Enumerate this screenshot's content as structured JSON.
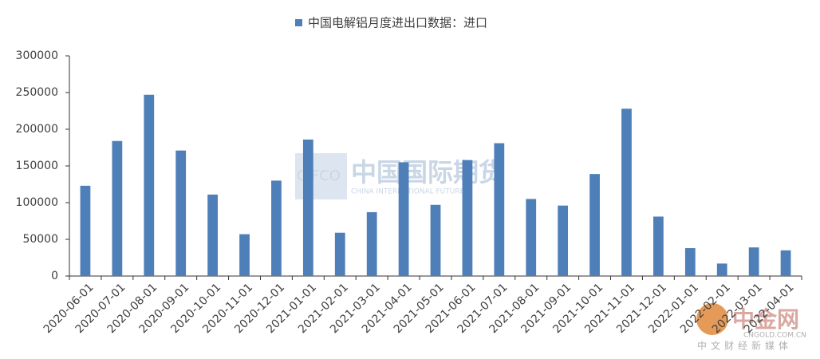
{
  "chart_data": {
    "type": "bar",
    "categories": [
      "2020-06-01",
      "2020-07-01",
      "2020-08-01",
      "2020-09-01",
      "2020-10-01",
      "2020-11-01",
      "2020-12-01",
      "2021-01-01",
      "2021-02-01",
      "2021-03-01",
      "2021-04-01",
      "2021-05-01",
      "2021-06-01",
      "2021-07-01",
      "2021-08-01",
      "2021-09-01",
      "2021-10-01",
      "2021-11-01",
      "2021-12-01",
      "2022-01-01",
      "2022-02-01",
      "2022-03-01",
      "2022-04-01"
    ],
    "series": [
      {
        "name": "中国电解铝月度进出口数据：进口",
        "color": "#4f7fb8",
        "values": [
          123000,
          184000,
          247000,
          171000,
          111000,
          57000,
          130000,
          186000,
          59000,
          87000,
          155000,
          97000,
          158000,
          181000,
          105000,
          96000,
          139000,
          228000,
          81000,
          38000,
          17000,
          39000,
          35000
        ]
      }
    ],
    "ylim": [
      0,
      300000
    ],
    "yticks": [
      0,
      50000,
      100000,
      150000,
      200000,
      250000,
      300000
    ],
    "legend": "top",
    "watermarks": [
      "CIFCO",
      "中国国际期货",
      "CHINA INTERNATIONAL FUTURES",
      "中金网",
      "CNGOLD.COM.CN",
      "中文财经新媒体"
    ]
  }
}
